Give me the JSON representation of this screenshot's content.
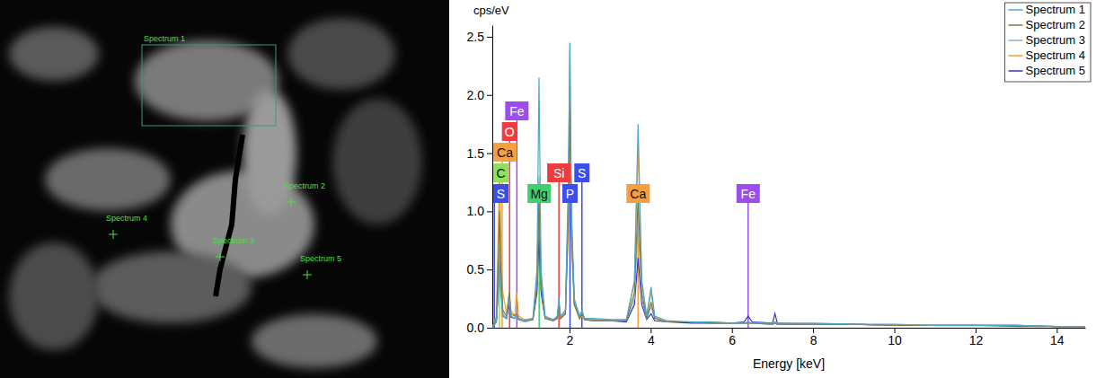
{
  "micrograph": {
    "labels": [
      "Spectrum 1",
      "Spectrum 2",
      "Spectrum 3",
      "Spectrum 4",
      "Spectrum 5"
    ]
  },
  "chart_data": {
    "type": "line",
    "y_label": "cps/eV",
    "x_label": "Energy [keV]",
    "xlim": [
      0.1,
      14.7
    ],
    "xticks": [
      2,
      4,
      6,
      8,
      10,
      12,
      14
    ],
    "ylim": [
      0,
      2.6
    ],
    "yticks": [
      {
        "value": 0,
        "label": "0.0"
      },
      0.5,
      {
        "value": 1,
        "label": "1.0"
      },
      1.5,
      {
        "value": 2,
        "label": "2.0"
      },
      2.5
    ],
    "grid": false,
    "legend": "top-right",
    "x": [
      0.1,
      0.2,
      0.25,
      0.28,
      0.31,
      0.36,
      0.45,
      0.52,
      0.56,
      0.65,
      0.7,
      0.75,
      0.9,
      1.1,
      1.2,
      1.25,
      1.3,
      1.4,
      1.6,
      1.7,
      1.74,
      1.78,
      1.9,
      1.97,
      2.01,
      2.05,
      2.12,
      2.25,
      2.31,
      2.37,
      2.6,
      3.0,
      3.4,
      3.6,
      3.69,
      3.78,
      3.9,
      4.01,
      4.1,
      4.4,
      5.0,
      5.5,
      6.0,
      6.3,
      6.4,
      6.5,
      7.0,
      7.06,
      7.12,
      8.0,
      9.0,
      10.0,
      11.0,
      12.0,
      13.0,
      14.0,
      14.7
    ],
    "series": [
      {
        "name": "Spectrum 1",
        "color": "#4aa8cc",
        "values": [
          0,
          0.05,
          0.3,
          0.5,
          0.3,
          0.1,
          0.08,
          0.25,
          0.1,
          0.08,
          0.1,
          0.07,
          0.06,
          0.08,
          0.5,
          2.15,
          0.5,
          0.1,
          0.07,
          0.1,
          0.25,
          0.1,
          0.15,
          1.2,
          2.45,
          1.0,
          0.25,
          0.1,
          0.15,
          0.08,
          0.08,
          0.07,
          0.07,
          0.4,
          1.75,
          0.4,
          0.1,
          0.35,
          0.1,
          0.06,
          0.05,
          0.05,
          0.04,
          0.04,
          0.05,
          0.04,
          0.04,
          0.05,
          0.04,
          0.04,
          0.03,
          0.03,
          0.02,
          0.02,
          0.02,
          0.01,
          0.01
        ]
      },
      {
        "name": "Spectrum 2",
        "color": "#7a7a3c",
        "values": [
          0,
          0.08,
          0.6,
          1.0,
          0.5,
          0.15,
          0.1,
          0.3,
          0.12,
          0.1,
          0.12,
          0.08,
          0.06,
          0.07,
          0.35,
          1.1,
          0.35,
          0.08,
          0.06,
          0.08,
          0.2,
          0.08,
          0.12,
          0.9,
          1.9,
          0.8,
          0.2,
          0.08,
          0.12,
          0.07,
          0.06,
          0.06,
          0.06,
          0.3,
          1.1,
          0.3,
          0.08,
          0.22,
          0.08,
          0.05,
          0.05,
          0.04,
          0.04,
          0.04,
          0.04,
          0.04,
          0.03,
          0.04,
          0.03,
          0.03,
          0.03,
          0.02,
          0.02,
          0.02,
          0.01,
          0.01,
          0.01
        ]
      },
      {
        "name": "Spectrum 3",
        "color": "#93aac8",
        "values": [
          0,
          0.06,
          0.4,
          0.7,
          0.4,
          0.12,
          0.08,
          0.28,
          0.1,
          0.08,
          0.1,
          0.07,
          0.05,
          0.07,
          0.4,
          1.3,
          0.4,
          0.08,
          0.06,
          0.09,
          0.22,
          0.09,
          0.14,
          1.1,
          2.4,
          0.9,
          0.22,
          0.09,
          0.13,
          0.07,
          0.07,
          0.06,
          0.06,
          0.25,
          0.9,
          0.25,
          0.08,
          0.18,
          0.08,
          0.05,
          0.05,
          0.04,
          0.04,
          0.04,
          0.04,
          0.04,
          0.03,
          0.04,
          0.03,
          0.03,
          0.03,
          0.02,
          0.02,
          0.02,
          0.02,
          0.01,
          0.01
        ]
      },
      {
        "name": "Spectrum 4",
        "color": "#f0a030",
        "values": [
          0,
          0.1,
          0.9,
          1.4,
          0.7,
          0.3,
          0.12,
          0.3,
          0.15,
          0.1,
          0.3,
          0.1,
          0.07,
          0.08,
          0.4,
          1.2,
          0.4,
          0.09,
          0.07,
          0.08,
          0.18,
          0.08,
          0.12,
          0.8,
          1.5,
          0.7,
          0.2,
          0.08,
          0.1,
          0.07,
          0.07,
          0.06,
          0.06,
          0.4,
          1.55,
          0.4,
          0.1,
          0.3,
          0.09,
          0.05,
          0.05,
          0.05,
          0.04,
          0.04,
          0.04,
          0.04,
          0.03,
          0.04,
          0.03,
          0.03,
          0.03,
          0.02,
          0.02,
          0.02,
          0.02,
          0.01,
          0.01
        ]
      },
      {
        "name": "Spectrum 5",
        "color": "#3535c8",
        "values": [
          0,
          0.05,
          0.35,
          0.6,
          0.35,
          0.1,
          0.08,
          0.2,
          0.09,
          0.08,
          0.1,
          0.07,
          0.06,
          0.07,
          0.3,
          0.8,
          0.3,
          0.08,
          0.06,
          0.08,
          0.18,
          0.08,
          0.12,
          1.0,
          2.0,
          0.85,
          0.2,
          0.08,
          0.12,
          0.07,
          0.06,
          0.06,
          0.05,
          0.2,
          0.6,
          0.2,
          0.07,
          0.12,
          0.06,
          0.05,
          0.04,
          0.04,
          0.04,
          0.05,
          0.1,
          0.05,
          0.04,
          0.12,
          0.04,
          0.03,
          0.03,
          0.02,
          0.02,
          0.02,
          0.02,
          0.01,
          0.01
        ]
      }
    ],
    "annotations": [
      {
        "text": "C",
        "x": 0.277,
        "color": "#8fe05a"
      },
      {
        "text": "S",
        "x": 0.149,
        "color": "#3a4ef0"
      },
      {
        "text": "Fe",
        "x": 0.705,
        "color": "#9b4df0"
      },
      {
        "text": "Ca",
        "x": 0.341,
        "color": "#f5a040"
      },
      {
        "text": "O",
        "x": 0.525,
        "color": "#f03c3c"
      },
      {
        "text": "Mg",
        "x": 1.254,
        "color": "#3ed06a"
      },
      {
        "text": "Si",
        "x": 1.74,
        "color": "#f03c3c"
      },
      {
        "text": "P",
        "x": 2.013,
        "color": "#3a4ef0"
      },
      {
        "text": "S",
        "x": 2.307,
        "color": "#3a4ef0"
      },
      {
        "text": "Ca",
        "x": 3.69,
        "color": "#f5a040"
      },
      {
        "text": "Fe",
        "x": 6.4,
        "color": "#9b4df0"
      }
    ]
  }
}
